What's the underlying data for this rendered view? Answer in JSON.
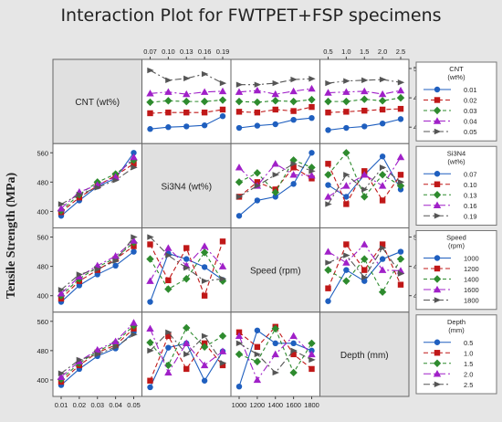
{
  "title": "Interaction Plot for FWTPET+FSP specimens",
  "ylabel": "Tensile Strength (MPa)",
  "factors": [
    {
      "key": "cnt",
      "label": "CNT (wt%)",
      "legend_title": [
        "CNT",
        "(wt%)"
      ],
      "levels": [
        "0.01",
        "0.02",
        "0.03",
        "0.04",
        "0.05"
      ],
      "x_ticks": [
        "0.01",
        "0.02",
        "0.03",
        "0.04",
        "0.05"
      ]
    },
    {
      "key": "si3n4",
      "label": "Si3N4 (wt%)",
      "legend_title": [
        "Si3N4",
        "(wt%)"
      ],
      "levels": [
        "0.07",
        "0.10",
        "0.13",
        "0.16",
        "0.19"
      ],
      "x_ticks": [
        "0.07",
        "0.10",
        "0.13",
        "0.16",
        "0.19"
      ]
    },
    {
      "key": "speed",
      "label": "Speed (rpm)",
      "legend_title": [
        "Speed",
        "(rpm)"
      ],
      "levels": [
        "1000",
        "1200",
        "1400",
        "1600",
        "1800"
      ],
      "x_ticks": [
        "1000",
        "1200",
        "1400",
        "1600",
        "1800"
      ]
    },
    {
      "key": "depth",
      "label": "Depth (mm)",
      "legend_title": [
        "Depth",
        "(mm)"
      ],
      "levels": [
        "0.5",
        "1.0",
        "1.5",
        "2.0",
        "2.5"
      ],
      "x_ticks": [
        "0.5",
        "1.0",
        "1.5",
        "2.0",
        "2.5"
      ]
    }
  ],
  "y_ticks": [
    "400",
    "480",
    "560"
  ],
  "ylim": [
    370,
    570
  ],
  "series_colors": [
    "#1f5fbf",
    "#c01818",
    "#2e8b2e",
    "#a020c8",
    "#555555"
  ],
  "markers": [
    "circle",
    "square",
    "diamond",
    "triangle",
    "arrow"
  ],
  "chart_data": {
    "type": "line",
    "title": "Interaction Plot for FWTPET+FSP specimens",
    "ylabel": "Tensile Strength (MPa)",
    "panels": [
      {
        "x_factor": "CNT (wt%)",
        "trace_factor": "Si3N4 (wt%)",
        "series": [
          [
            388,
            430,
            468,
            490,
            560
          ],
          [
            398,
            438,
            470,
            498,
            530
          ],
          [
            402,
            446,
            480,
            502,
            540
          ],
          [
            408,
            453,
            472,
            494,
            548
          ],
          [
            420,
            446,
            465,
            485,
            520
          ]
        ]
      },
      {
        "x_factor": "CNT (wt%)",
        "trace_factor": "Speed (rpm)",
        "series": [
          [
            383,
            428,
            458,
            482,
            520
          ],
          [
            392,
            440,
            470,
            500,
            535
          ],
          [
            400,
            446,
            478,
            503,
            545
          ],
          [
            406,
            452,
            482,
            508,
            550
          ],
          [
            416,
            458,
            472,
            495,
            560
          ]
        ]
      },
      {
        "x_factor": "CNT (wt%)",
        "trace_factor": "Depth (mm)",
        "series": [
          [
            386,
            430,
            465,
            486,
            530
          ],
          [
            395,
            440,
            475,
            495,
            540
          ],
          [
            402,
            446,
            478,
            502,
            548
          ],
          [
            408,
            451,
            482,
            505,
            556
          ],
          [
            418,
            455,
            470,
            490,
            524
          ]
        ]
      },
      {
        "x_factor": "Si3N4 (wt%)",
        "trace_factor": "CNT (wt%)",
        "series": [
          [
            395,
            400,
            402,
            405,
            430
          ],
          [
            438,
            440,
            440,
            440,
            448
          ],
          [
            468,
            472,
            470,
            470,
            474
          ],
          [
            492,
            496,
            490,
            496,
            498
          ],
          [
            555,
            528,
            533,
            545,
            520
          ]
        ]
      },
      {
        "x_factor": "Si3N4 (wt%)",
        "trace_factor": "Speed (rpm)",
        "series": [
          [
            383,
            515,
            500,
            478,
            443
          ],
          [
            540,
            442,
            530,
            400,
            548
          ],
          [
            500,
            418,
            446,
            518,
            440
          ],
          [
            440,
            530,
            482,
            535,
            480
          ],
          [
            560,
            510,
            476,
            440,
            446
          ]
        ]
      },
      {
        "x_factor": "Si3N4 (wt%)",
        "trace_factor": "Depth (mm)",
        "series": [
          [
            380,
            488,
            500,
            398,
            478
          ],
          [
            398,
            520,
            430,
            500,
            440
          ],
          [
            502,
            440,
            542,
            490,
            520
          ],
          [
            540,
            420,
            500,
            440,
            478
          ],
          [
            480,
            530,
            470,
            520,
            446
          ]
        ]
      },
      {
        "x_factor": "Speed (rpm)",
        "trace_factor": "CNT (wt%)",
        "series": [
          [
            398,
            404,
            408,
            420,
            425
          ],
          [
            442,
            440,
            448,
            444,
            455
          ],
          [
            470,
            468,
            472,
            470,
            475
          ],
          [
            496,
            500,
            490,
            498,
            505
          ],
          [
            516,
            516,
            520,
            530,
            532
          ]
        ]
      },
      {
        "x_factor": "Speed (rpm)",
        "trace_factor": "Si3N4 (wt%)",
        "series": [
          [
            388,
            430,
            440,
            475,
            560
          ],
          [
            440,
            480,
            460,
            520,
            490
          ],
          [
            480,
            505,
            452,
            540,
            520
          ],
          [
            520,
            470,
            530,
            500,
            498
          ],
          [
            440,
            470,
            500,
            530,
            510
          ]
        ]
      },
      {
        "x_factor": "Speed (rpm)",
        "trace_factor": "Depth (mm)",
        "series": [
          [
            382,
            535,
            500,
            500,
            480
          ],
          [
            530,
            490,
            545,
            470,
            430
          ],
          [
            470,
            450,
            540,
            420,
            500
          ],
          [
            520,
            400,
            470,
            520,
            470
          ],
          [
            500,
            470,
            420,
            480,
            455
          ]
        ]
      },
      {
        "x_factor": "Depth (mm)",
        "trace_factor": "CNT (wt%)",
        "series": [
          [
            392,
            398,
            402,
            410,
            422
          ],
          [
            440,
            442,
            445,
            448,
            450
          ],
          [
            470,
            470,
            476,
            472,
            480
          ],
          [
            494,
            496,
            498,
            490,
            500
          ],
          [
            520,
            526,
            528,
            530,
            522
          ]
        ]
      },
      {
        "x_factor": "Depth (mm)",
        "trace_factor": "Si3N4 (wt%)",
        "series": [
          [
            472,
            440,
            500,
            550,
            460
          ],
          [
            530,
            420,
            510,
            430,
            500
          ],
          [
            500,
            560,
            440,
            500,
            470
          ],
          [
            440,
            470,
            500,
            470,
            548
          ],
          [
            420,
            500,
            460,
            520,
            480
          ]
        ]
      },
      {
        "x_factor": "Depth (mm)",
        "trace_factor": "Speed (rpm)",
        "series": [
          [
            385,
            470,
            440,
            500,
            520
          ],
          [
            420,
            540,
            470,
            540,
            430
          ],
          [
            470,
            440,
            500,
            410,
            500
          ],
          [
            520,
            490,
            540,
            470,
            468
          ],
          [
            490,
            510,
            450,
            530,
            460
          ]
        ]
      }
    ]
  }
}
